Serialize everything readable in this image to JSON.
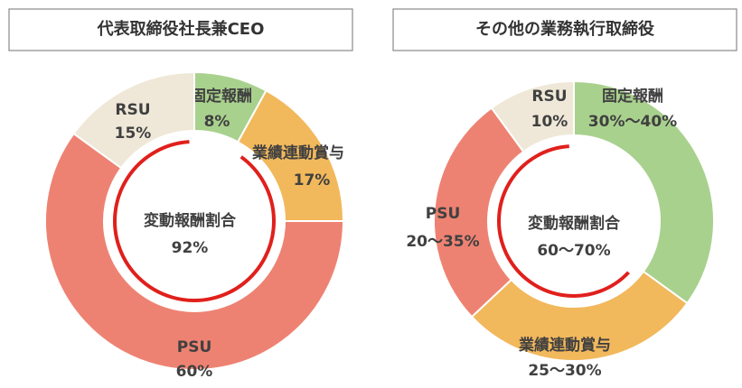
{
  "chart_data": [
    {
      "type": "donut",
      "title": "代表取締役社長兼CEO",
      "categories": [
        "固定報酬",
        "業績連動賞与",
        "PSU",
        "RSU"
      ],
      "values": [
        8,
        17,
        60,
        15
      ],
      "value_labels": [
        "8%",
        "17%",
        "60%",
        "15%"
      ],
      "colors": [
        "#a9d18e",
        "#f2b85c",
        "#ee8272",
        "#efe8d8"
      ],
      "center_text": [
        "変動報酬割合",
        "92%"
      ]
    },
    {
      "type": "donut",
      "title": "その他の業務執行取締役",
      "categories": [
        "固定報酬",
        "業績連動賞与",
        "PSU",
        "RSU"
      ],
      "values": [
        35,
        28,
        27,
        10
      ],
      "value_labels": [
        "30%〜40%",
        "25〜30%",
        "20〜35%",
        "10%"
      ],
      "colors": [
        "#a9d18e",
        "#f2b85c",
        "#ee8272",
        "#efe8d8"
      ],
      "center_text": [
        "変動報酬割合",
        "60〜70%"
      ]
    }
  ]
}
